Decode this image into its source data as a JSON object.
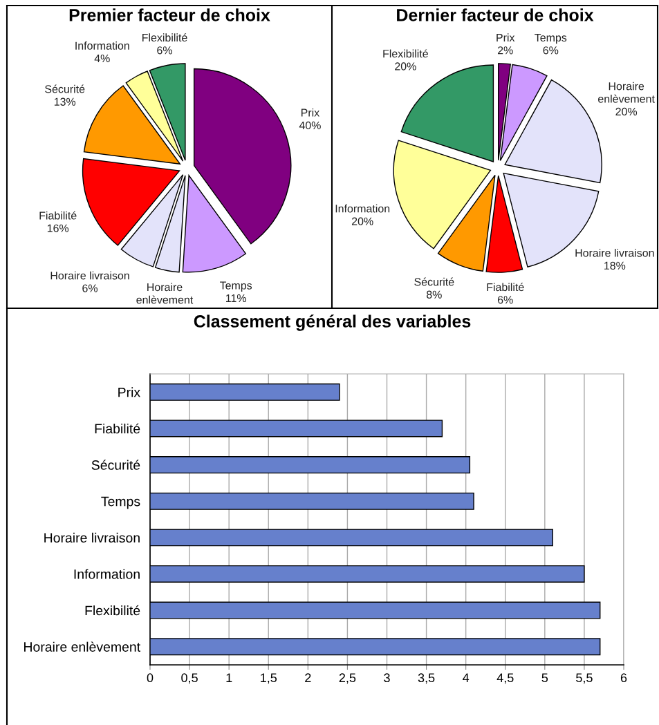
{
  "chart_data": [
    {
      "type": "pie",
      "title": "Premier facteur de choix",
      "categories": [
        "Prix",
        "Temps",
        "Horaire enlèvement",
        "Horaire livraison",
        "Fiabilité",
        "Sécurité",
        "Information",
        "Flexibilité"
      ],
      "values": [
        40,
        11,
        4,
        6,
        16,
        13,
        4,
        6
      ],
      "value_labels": [
        "40%",
        "11%",
        null,
        "6%",
        "16%",
        "13%",
        "4%",
        "6%"
      ],
      "colors": [
        "#800080",
        "#cc99ff",
        "#e3e3fa",
        "#e3e3fa",
        "#ff0000",
        "#ff9900",
        "#ffff99",
        "#339966"
      ]
    },
    {
      "type": "pie",
      "title": "Dernier facteur de choix",
      "categories": [
        "Prix",
        "Temps",
        "Horaire enlèvement",
        "Horaire livraison",
        "Fiabilité",
        "Sécurité",
        "Information",
        "Flexibilité"
      ],
      "values": [
        2,
        6,
        20,
        18,
        6,
        8,
        20,
        20
      ],
      "value_labels": [
        "2%",
        "6%",
        "20%",
        "18%",
        "6%",
        "8%",
        "20%",
        "20%"
      ],
      "colors": [
        "#800080",
        "#cc99ff",
        "#e3e3fa",
        "#e3e3fa",
        "#ff0000",
        "#ff9900",
        "#ffff99",
        "#339966"
      ]
    },
    {
      "type": "bar",
      "orientation": "horizontal",
      "title": "Classement général des variables",
      "categories": [
        "Prix",
        "Fiabilité",
        "Sécurité",
        "Temps",
        "Horaire livraison",
        "Information",
        "Flexibilité",
        "Horaire enlèvement"
      ],
      "values": [
        2.4,
        3.7,
        4.05,
        4.1,
        5.1,
        5.5,
        5.7,
        5.7
      ],
      "color": "#6680cc",
      "xlim": [
        0,
        6
      ],
      "xticks": [
        0,
        {
          "value": 0.5,
          "label": "0,5"
        },
        1,
        {
          "value": 1.5,
          "label": "1,5"
        },
        2,
        {
          "value": 2.5,
          "label": "2,5"
        },
        3,
        {
          "value": 3.5,
          "label": "3,5"
        },
        4,
        {
          "value": 4.5,
          "label": "4,5"
        },
        5,
        {
          "value": 5.5,
          "label": "5,5"
        },
        6
      ],
      "grid": "x"
    }
  ]
}
